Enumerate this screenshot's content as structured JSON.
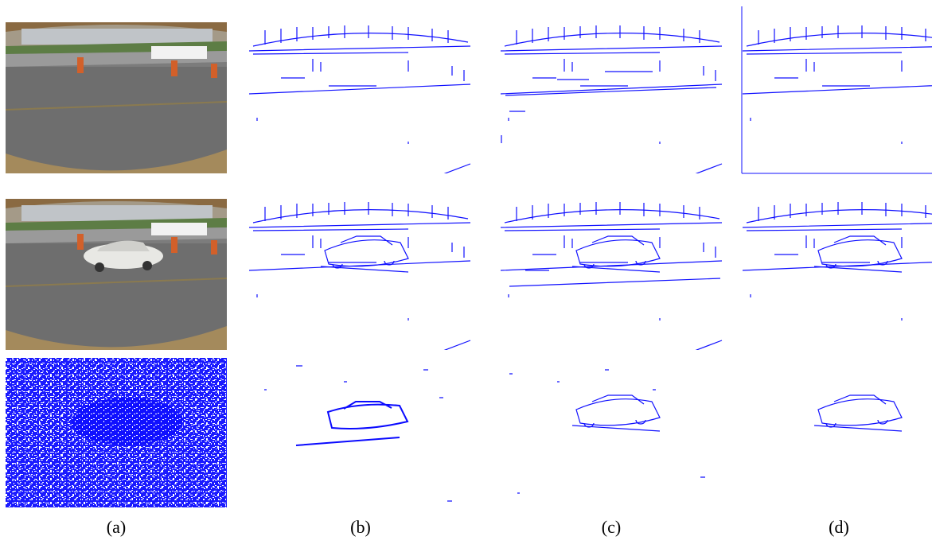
{
  "figure": {
    "subfigure_labels": [
      "(a)",
      "(b)",
      "(c)",
      "(d)"
    ]
  }
}
